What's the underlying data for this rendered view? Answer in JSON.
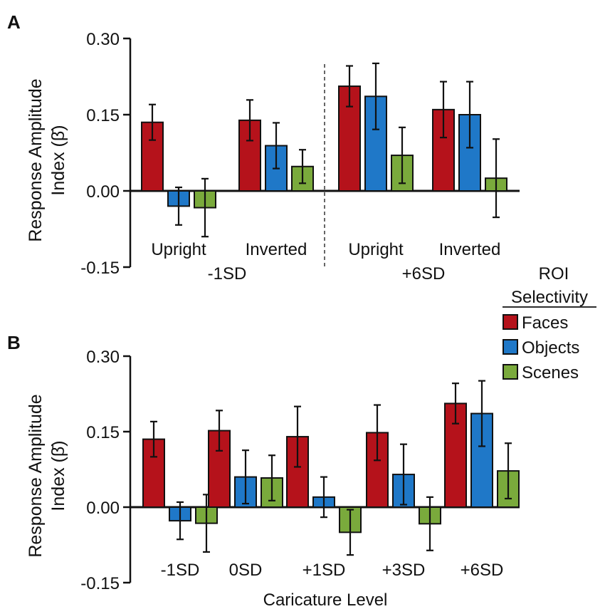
{
  "colors": {
    "Faces": "#b5121b",
    "Objects": "#1f78c8",
    "Scenes": "#7aaa3c"
  },
  "legend": {
    "title_line1": "ROI",
    "title_line2": "Selectivity",
    "items": [
      "Faces",
      "Objects",
      "Scenes"
    ]
  },
  "chart_data": [
    {
      "panel": "A",
      "type": "bar",
      "ylabel_line1": "Response Amplitude",
      "ylabel_line2": "Index (β̄)",
      "xlabel": "",
      "ylim": [
        -0.15,
        0.3
      ],
      "yticks": [
        0.3,
        0.15,
        0.0,
        -0.15
      ],
      "ytick_labels": [
        "0.30",
        "0.15",
        "0.00",
        "-0.15"
      ],
      "groups": [
        {
          "label": "Upright",
          "level": "-1SD",
          "values": [
            0.135,
            -0.03,
            -0.033
          ],
          "errors": [
            0.035,
            0.037,
            0.057
          ]
        },
        {
          "label": "Inverted",
          "level": "-1SD",
          "values": [
            0.139,
            0.089,
            0.048
          ],
          "errors": [
            0.04,
            0.045,
            0.033
          ]
        },
        {
          "label": "Upright",
          "level": "+6SD",
          "values": [
            0.206,
            0.186,
            0.07
          ],
          "errors": [
            0.04,
            0.065,
            0.055
          ]
        },
        {
          "label": "Inverted",
          "level": "+6SD",
          "values": [
            0.16,
            0.15,
            0.025
          ],
          "errors": [
            0.055,
            0.065,
            0.077
          ]
        }
      ],
      "levels": [
        "-1SD",
        "+6SD"
      ],
      "series": [
        "Faces",
        "Objects",
        "Scenes"
      ]
    },
    {
      "panel": "B",
      "type": "bar",
      "ylabel_line1": "Response Amplitude",
      "ylabel_line2": "Index (β̄)",
      "xlabel": "Caricature Level",
      "ylim": [
        -0.15,
        0.3
      ],
      "yticks": [
        0.3,
        0.15,
        0.0,
        -0.15
      ],
      "ytick_labels": [
        "0.30",
        "0.15",
        "0.00",
        "-0.15"
      ],
      "groups": [
        {
          "label": "-1SD",
          "values": [
            0.135,
            -0.027,
            -0.032
          ],
          "errors": [
            0.035,
            0.037,
            0.057
          ]
        },
        {
          "label": "0SD",
          "values": [
            0.152,
            0.06,
            0.058
          ],
          "errors": [
            0.04,
            0.053,
            0.045
          ]
        },
        {
          "label": "+1SD",
          "values": [
            0.14,
            0.02,
            -0.05
          ],
          "errors": [
            0.06,
            0.04,
            0.045
          ]
        },
        {
          "label": "+3SD",
          "values": [
            0.148,
            0.065,
            -0.033
          ],
          "errors": [
            0.055,
            0.06,
            0.053
          ]
        },
        {
          "label": "+6SD",
          "values": [
            0.206,
            0.186,
            0.072
          ],
          "errors": [
            0.04,
            0.065,
            0.055
          ]
        }
      ],
      "series": [
        "Faces",
        "Objects",
        "Scenes"
      ]
    }
  ]
}
